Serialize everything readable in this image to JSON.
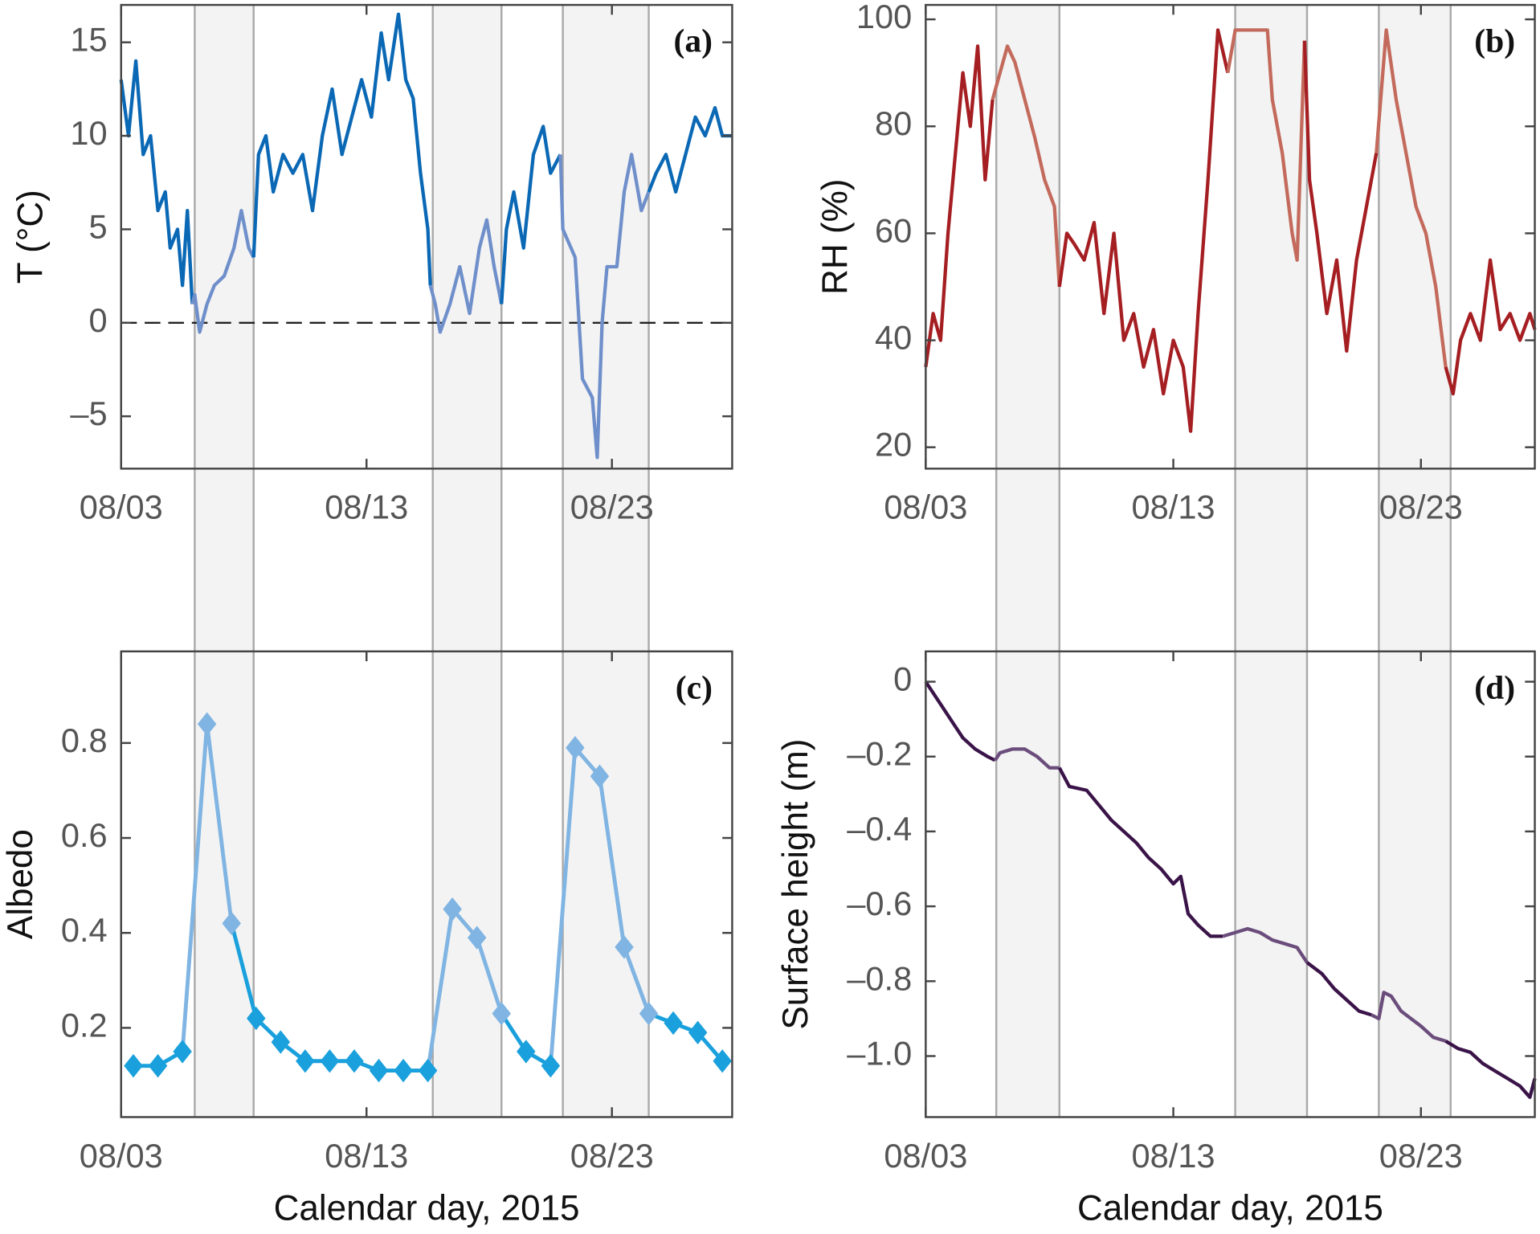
{
  "chart_data": [
    {
      "type": "line",
      "panel_label": "(a)",
      "ylabel": "T (°C)",
      "color": "#0a68b5",
      "highlight_color": "#6f8fcb",
      "reference_line": 0,
      "xlim": [
        3,
        27.9
      ],
      "xticks": [
        {
          "value": 3,
          "label": "08/03"
        },
        {
          "value": 13,
          "label": "08/13"
        },
        {
          "value": 23,
          "label": "08/23"
        }
      ],
      "ylim": [
        -7.8,
        17
      ],
      "yticks": [
        {
          "value": -5,
          "label": "–5"
        },
        0,
        5,
        10,
        15
      ],
      "shaded": [
        [
          6,
          8.4
        ],
        [
          15.7,
          18.5
        ],
        [
          21,
          24.5
        ]
      ],
      "x": [
        3.0,
        3.3,
        3.6,
        3.9,
        4.2,
        4.5,
        4.8,
        5.0,
        5.3,
        5.5,
        5.7,
        5.9,
        6.0,
        6.2,
        6.5,
        6.8,
        7.2,
        7.6,
        7.9,
        8.2,
        8.4,
        8.6,
        8.9,
        9.2,
        9.6,
        10.0,
        10.4,
        10.8,
        11.2,
        11.6,
        12.0,
        12.4,
        12.8,
        13.2,
        13.6,
        13.9,
        14.3,
        14.6,
        14.9,
        15.2,
        15.5,
        15.6,
        15.8,
        16.0,
        16.4,
        16.8,
        17.2,
        17.6,
        17.9,
        18.2,
        18.5,
        18.7,
        19.0,
        19.4,
        19.8,
        20.2,
        20.5,
        20.9,
        21.0,
        21.5,
        21.8,
        22.2,
        22.4,
        22.6,
        22.8,
        23.2,
        23.5,
        23.8,
        24.2,
        24.5,
        24.8,
        25.2,
        25.6,
        26.0,
        26.4,
        26.8,
        27.2,
        27.5,
        27.9
      ],
      "values": [
        13,
        10,
        14,
        9,
        10,
        6,
        7,
        4,
        5,
        2,
        6,
        1,
        1.5,
        -0.5,
        1,
        2,
        2.5,
        4,
        6,
        4,
        3.5,
        9,
        10,
        7,
        9,
        8,
        9,
        6,
        10,
        12.5,
        9,
        11,
        13,
        11,
        15.5,
        13,
        16.5,
        13,
        12,
        8,
        5,
        2,
        1,
        -0.5,
        1,
        3,
        0.5,
        4,
        5.5,
        3,
        1,
        5,
        7,
        4,
        9,
        10.5,
        8,
        9,
        5,
        3.5,
        -3,
        -4,
        -7.2,
        0,
        3,
        3,
        7,
        9,
        6,
        7,
        8,
        9,
        7,
        9,
        11,
        10,
        11.5,
        10,
        10
      ]
    },
    {
      "type": "line",
      "panel_label": "(b)",
      "ylabel": "RH (%)",
      "color": "#a51e22",
      "highlight_color": "#c36a5c",
      "xlim": [
        3,
        27.6
      ],
      "xticks": [
        {
          "value": 3,
          "label": "08/03"
        },
        {
          "value": 13,
          "label": "08/13"
        },
        {
          "value": 23,
          "label": "08/23"
        }
      ],
      "ylim": [
        16,
        102.7
      ],
      "yticks": [
        20,
        40,
        60,
        80,
        100
      ],
      "shaded": [
        [
          5.85,
          8.4
        ],
        [
          15.5,
          18.4
        ],
        [
          21.3,
          24.2
        ]
      ],
      "x": [
        3.0,
        3.3,
        3.6,
        3.9,
        4.2,
        4.5,
        4.8,
        5.1,
        5.4,
        5.7,
        6.0,
        6.3,
        6.6,
        7.0,
        7.4,
        7.8,
        8.2,
        8.4,
        8.7,
        9.0,
        9.4,
        9.8,
        10.2,
        10.6,
        11.0,
        11.4,
        11.8,
        12.2,
        12.6,
        13.0,
        13.4,
        13.7,
        14.0,
        14.4,
        14.8,
        15.2,
        15.5,
        16.0,
        16.5,
        16.8,
        17.0,
        17.4,
        17.8,
        18.0,
        18.3,
        18.5,
        18.8,
        19.2,
        19.6,
        20.0,
        20.4,
        20.8,
        21.2,
        21.6,
        22.0,
        22.4,
        22.8,
        23.2,
        23.6,
        24.0,
        24.3,
        24.6,
        25.0,
        25.4,
        25.8,
        26.2,
        26.6,
        27.0,
        27.4,
        27.6
      ],
      "values": [
        35,
        45,
        40,
        60,
        75,
        90,
        80,
        95,
        70,
        85,
        90,
        95,
        92,
        85,
        78,
        70,
        65,
        50,
        60,
        58,
        55,
        62,
        45,
        60,
        40,
        45,
        35,
        42,
        30,
        40,
        35,
        23,
        45,
        70,
        98,
        90,
        98,
        98,
        98,
        98,
        85,
        75,
        60,
        55,
        96,
        70,
        60,
        45,
        55,
        38,
        55,
        65,
        75,
        98,
        85,
        75,
        65,
        60,
        50,
        35,
        30,
        40,
        45,
        40,
        55,
        42,
        45,
        40,
        45,
        42
      ]
    },
    {
      "type": "line",
      "marker": "diamond",
      "panel_label": "(c)",
      "ylabel": "Albedo",
      "xlabel": "Calendar day, 2015",
      "color": "#1aa0dc",
      "highlight_color": "#80b4e2",
      "xlim": [
        3,
        27.9
      ],
      "xticks": [
        {
          "value": 3,
          "label": "08/03"
        },
        {
          "value": 13,
          "label": "08/13"
        },
        {
          "value": 23,
          "label": "08/23"
        }
      ],
      "ylim": [
        0.012,
        0.993
      ],
      "yticks": [
        0.2,
        0.4,
        0.6,
        0.8
      ],
      "shaded": [
        [
          6,
          8.4
        ],
        [
          15.7,
          18.5
        ],
        [
          21,
          24.5
        ]
      ],
      "x": [
        3.5,
        4.5,
        5.5,
        6.5,
        7.5,
        8.5,
        9.5,
        10.5,
        11.5,
        12.5,
        13.5,
        14.5,
        15.5,
        16.5,
        17.5,
        18.5,
        19.5,
        20.5,
        21.5,
        22.5,
        23.5,
        24.5,
        25.5,
        26.5,
        27.5
      ],
      "values": [
        0.12,
        0.12,
        0.15,
        0.84,
        0.42,
        0.22,
        0.17,
        0.13,
        0.13,
        0.13,
        0.11,
        0.11,
        0.11,
        0.45,
        0.39,
        0.23,
        0.15,
        0.12,
        0.79,
        0.73,
        0.37,
        0.23,
        0.21,
        0.19,
        0.13
      ]
    },
    {
      "type": "line",
      "panel_label": "(d)",
      "ylabel": "Surface height (m)",
      "xlabel": "Calendar day, 2015",
      "color": "#3a1448",
      "highlight_color": "#6b4d7c",
      "xlim": [
        3,
        27.6
      ],
      "xticks": [
        {
          "value": 3,
          "label": "08/03"
        },
        {
          "value": 13,
          "label": "08/13"
        },
        {
          "value": 23,
          "label": "08/23"
        }
      ],
      "ylim": [
        -1.163,
        0.081
      ],
      "yticks": [
        {
          "value": -1.0,
          "label": "–1.0"
        },
        {
          "value": -0.8,
          "label": "–0.8"
        },
        {
          "value": -0.6,
          "label": "–0.6"
        },
        {
          "value": -0.4,
          "label": "–0.4"
        },
        {
          "value": -0.2,
          "label": "–0.2"
        },
        0
      ],
      "shaded": [
        [
          5.85,
          8.4
        ],
        [
          15.5,
          18.4
        ],
        [
          21.3,
          24.2
        ]
      ],
      "x": [
        3.0,
        3.5,
        4.0,
        4.5,
        5.0,
        5.5,
        5.8,
        6.0,
        6.5,
        7.0,
        7.5,
        8.0,
        8.4,
        8.8,
        9.5,
        10.0,
        10.5,
        11.0,
        11.5,
        12.0,
        12.5,
        13.0,
        13.3,
        13.6,
        14.0,
        14.5,
        15.0,
        15.5,
        16.0,
        16.5,
        17.0,
        17.5,
        18.0,
        18.4,
        19.0,
        19.5,
        20.0,
        20.5,
        21.0,
        21.3,
        21.5,
        21.8,
        22.2,
        22.6,
        23.0,
        23.5,
        24.0,
        24.5,
        25.0,
        25.5,
        26.0,
        26.5,
        27.0,
        27.4,
        27.6
      ],
      "values": [
        0,
        -0.05,
        -0.1,
        -0.15,
        -0.18,
        -0.2,
        -0.21,
        -0.19,
        -0.18,
        -0.18,
        -0.2,
        -0.23,
        -0.23,
        -0.28,
        -0.29,
        -0.33,
        -0.37,
        -0.4,
        -0.43,
        -0.47,
        -0.5,
        -0.54,
        -0.52,
        -0.62,
        -0.65,
        -0.68,
        -0.68,
        -0.67,
        -0.66,
        -0.67,
        -0.69,
        -0.7,
        -0.71,
        -0.75,
        -0.78,
        -0.82,
        -0.85,
        -0.88,
        -0.89,
        -0.9,
        -0.83,
        -0.84,
        -0.88,
        -0.9,
        -0.92,
        -0.95,
        -0.96,
        -0.98,
        -0.99,
        -1.02,
        -1.04,
        -1.06,
        -1.08,
        -1.11,
        -1.06
      ]
    }
  ]
}
